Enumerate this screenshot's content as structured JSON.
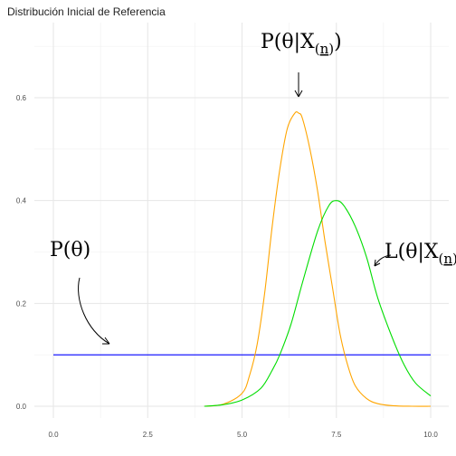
{
  "chart_data": {
    "type": "line",
    "title": "Distribución Inicial de Referencia",
    "xlabel": "",
    "ylabel": "",
    "xlim": [
      0,
      10
    ],
    "ylim": [
      0,
      0.7
    ],
    "x_ticks": [
      0,
      2.5,
      5,
      7.5,
      10
    ],
    "x_tick_labels": [
      "0.0",
      "2.5",
      "5.0",
      "7.5",
      "10.0"
    ],
    "y_ticks": [
      0,
      0.2,
      0.4,
      0.6
    ],
    "y_tick_labels": [
      "0.0",
      "0.2",
      "0.4",
      "0.6"
    ],
    "grid": true,
    "legend": "none",
    "series": [
      {
        "color": "#0000ff",
        "x": [
          0,
          10
        ],
        "y": [
          0.1,
          0.1
        ]
      },
      {
        "color": "#ffa500",
        "x": [
          4.0,
          4.5,
          5.0,
          5.2,
          5.4,
          5.6,
          5.8,
          6.0,
          6.2,
          6.4,
          6.5,
          6.6,
          6.8,
          7.0,
          7.2,
          7.4,
          7.6,
          7.8,
          8.0,
          8.3,
          8.6,
          9.0,
          9.5,
          10.0
        ],
        "y": [
          0.0,
          0.004,
          0.025,
          0.06,
          0.12,
          0.22,
          0.35,
          0.46,
          0.54,
          0.57,
          0.57,
          0.56,
          0.5,
          0.42,
          0.32,
          0.23,
          0.14,
          0.08,
          0.04,
          0.015,
          0.005,
          0.001,
          0.0,
          0.0
        ]
      },
      {
        "color": "#00dd00",
        "x": [
          4.0,
          4.5,
          5.0,
          5.5,
          5.8,
          6.0,
          6.3,
          6.6,
          7.0,
          7.3,
          7.5,
          7.7,
          8.0,
          8.3,
          8.6,
          9.0,
          9.3,
          9.6,
          10.0
        ],
        "y": [
          0.0,
          0.003,
          0.012,
          0.035,
          0.07,
          0.1,
          0.16,
          0.24,
          0.34,
          0.39,
          0.4,
          0.39,
          0.35,
          0.29,
          0.21,
          0.13,
          0.08,
          0.045,
          0.02
        ]
      }
    ],
    "annotations": [
      {
        "parts": [
          "P(θ)"
        ]
      },
      {
        "parts": [
          "P(θ|X",
          "(",
          "n",
          ")",
          ")"
        ]
      },
      {
        "parts": [
          "L(θ|X",
          "(",
          "n",
          ")",
          ")"
        ]
      }
    ]
  }
}
